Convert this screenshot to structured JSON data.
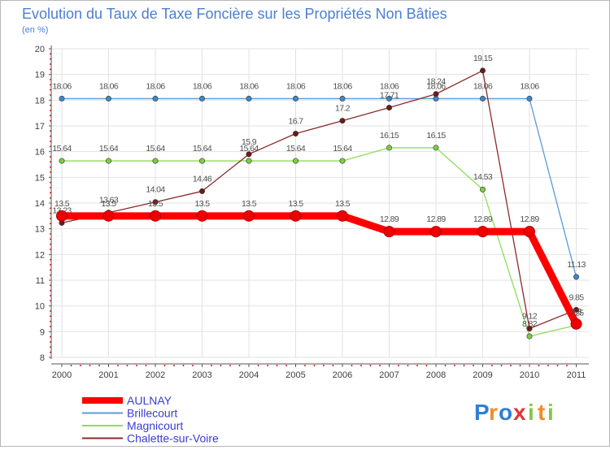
{
  "chart_data": {
    "type": "line",
    "title": "Evolution du Taux de Taxe Foncière sur les Propriétés Non Bâties",
    "subtitle": "(en %)",
    "xlabel": "",
    "ylabel": "",
    "categories": [
      "2000",
      "2001",
      "2002",
      "2003",
      "2004",
      "2005",
      "2006",
      "2007",
      "2008",
      "2009",
      "2010",
      "2011"
    ],
    "ylim": [
      8,
      20
    ],
    "yticks": [
      "8",
      "9",
      "10",
      "11",
      "12",
      "13",
      "14",
      "15",
      "16",
      "17",
      "18",
      "19",
      "20"
    ],
    "grid": true,
    "legend_position": "bottom-left",
    "series": [
      {
        "name": "Brillecourt",
        "color": "#5b9bd5",
        "marker": "#3f86c8",
        "values": [
          18.06,
          18.06,
          18.06,
          18.06,
          18.06,
          18.06,
          18.06,
          18.06,
          18.06,
          18.06,
          18.06,
          11.13
        ],
        "labels": [
          "18.06",
          "18.06",
          "18.06",
          "18.06",
          "18.06",
          "18.06",
          "18.06",
          "18.06",
          "18.06",
          "18.06",
          "18.06",
          "11.13"
        ]
      },
      {
        "name": "Magnicourt",
        "color": "#8fdc5a",
        "marker": "#7ccc44",
        "values": [
          15.64,
          15.64,
          15.64,
          15.64,
          15.64,
          15.64,
          15.64,
          16.15,
          16.15,
          14.53,
          8.82,
          9.25
        ],
        "labels": [
          "15.64",
          "15.64",
          "15.64",
          "15.64",
          "15.64",
          "15.64",
          "15.64",
          "16.15",
          "16.15",
          "14.53",
          "8.82",
          "9.25"
        ]
      },
      {
        "name": "Chalette-sur-Voire",
        "color": "#8b2b2b",
        "marker": "#6b1a1a",
        "values": [
          13.23,
          13.63,
          14.04,
          14.46,
          15.9,
          16.7,
          17.2,
          17.71,
          18.24,
          19.15,
          9.12,
          9.85
        ],
        "labels": [
          "13.23",
          "13.63",
          "14.04",
          "14.46",
          "15.9",
          "16.7",
          "17.2",
          "17.71",
          "18.24",
          "19.15",
          "9.12",
          "9.85"
        ]
      },
      {
        "name": "AULNAY",
        "color": "#ff0000",
        "marker": "#ee0000",
        "values": [
          13.5,
          13.5,
          13.5,
          13.5,
          13.5,
          13.5,
          13.5,
          12.89,
          12.89,
          12.89,
          12.89,
          9.3
        ],
        "labels": [
          "13.5",
          "13.5",
          "13.5",
          "13.5",
          "13.5",
          "13.5",
          "13.5",
          "12.89",
          "12.89",
          "12.89",
          "12.89",
          "9.3"
        ]
      }
    ]
  },
  "logo": {
    "letters": [
      "P",
      "r",
      "o",
      "x",
      "i",
      "t",
      "i"
    ],
    "colors": [
      "#2f7fd1",
      "#f28c28",
      "#2f7fd1",
      "#e13434",
      "#86c64a",
      "#f28c28",
      "#86c64a"
    ]
  }
}
